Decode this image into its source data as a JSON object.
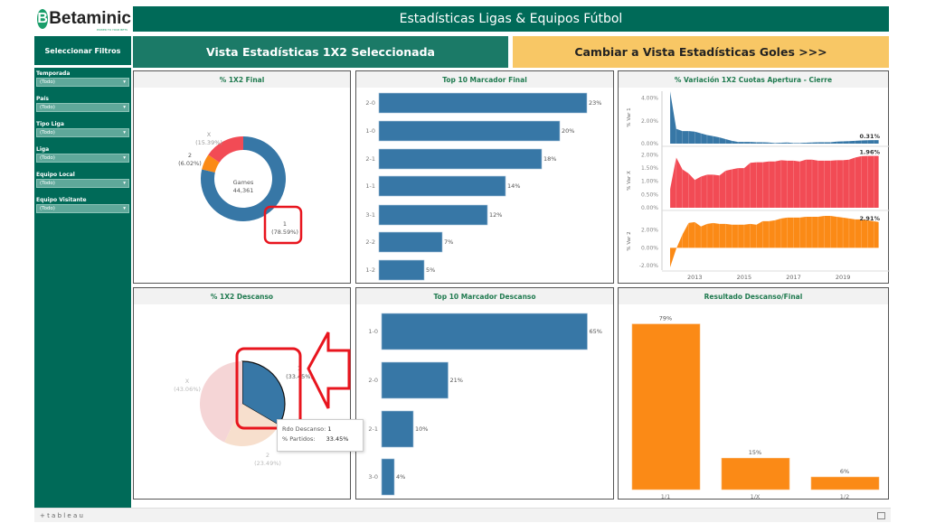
{
  "logo": {
    "text": "Betaminic",
    "tagline": "POWER TO YOUR BETS"
  },
  "header": {
    "title": "Estadísticas Ligas & Equipos Fútbol"
  },
  "sidebar": {
    "title": "Seleccionar Filtros",
    "filters": [
      {
        "label": "Temporada",
        "value": "(Todo)"
      },
      {
        "label": "País",
        "value": "(Todo)"
      },
      {
        "label": "Tipo Liga",
        "value": "(Todo)"
      },
      {
        "label": "Liga",
        "value": "(Todo)"
      },
      {
        "label": "Equipo Local",
        "value": "(Todo)"
      },
      {
        "label": "Equipo Visitante",
        "value": "(Todo)"
      }
    ]
  },
  "view_buttons": {
    "current": "Vista Estadísticas 1X2 Seleccionada",
    "switch": "Cambiar a Vista Estadísticas Goles >>>"
  },
  "colors": {
    "dark_green": "#006a58",
    "blue": "#3777a6",
    "red": "#f24b55",
    "orange": "#fb8a16",
    "yellow": "#f8c765",
    "annotation": "#e8151e"
  },
  "tooltip": {
    "line1_label": "Rdo Descanso:",
    "line1_value": "1",
    "line2_label": "% Partidos:",
    "line2_value": "33.45%"
  },
  "footer": {
    "brand": "+ t a b l e a u"
  },
  "chart_data": [
    {
      "type": "pie",
      "title": "% 1X2 Final",
      "center_label": "Games",
      "center_value": "44,361",
      "slices": [
        {
          "label": "1",
          "value": 78.59,
          "text": "(78.59%)",
          "color": "#3777a6"
        },
        {
          "label": "2",
          "value": 6.02,
          "text": "(6.02%)",
          "color": "#fb8a16"
        },
        {
          "label": "X",
          "value": 15.39,
          "text": "(15.39%)",
          "color": "#f24b55"
        }
      ]
    },
    {
      "type": "bar",
      "title": "Top 10 Marcador Final",
      "categories": [
        "2-0",
        "1-0",
        "2-1",
        "1-1",
        "3-1",
        "2-2",
        "1-2"
      ],
      "values": [
        23,
        20,
        18,
        14,
        12,
        7,
        5
      ],
      "labels": [
        "23%",
        "20%",
        "18%",
        "14%",
        "12%",
        "7%",
        "5%"
      ]
    },
    {
      "type": "area",
      "title": "% Variación 1X2 Cuotas Apertura - Cierre",
      "x_ticks": [
        "2013",
        "2015",
        "2017",
        "2019"
      ],
      "x": [
        2012,
        2012.25,
        2012.5,
        2012.75,
        2013,
        2013.25,
        2013.5,
        2013.75,
        2014,
        2014.25,
        2014.5,
        2014.75,
        2015,
        2015.25,
        2015.5,
        2015.75,
        2016,
        2016.25,
        2016.5,
        2016.75,
        2017,
        2017.25,
        2017.5,
        2017.75,
        2018,
        2018.25,
        2018.5,
        2018.75,
        2019,
        2019.25,
        2019.5,
        2019.75,
        2020,
        2020.25,
        2020.45
      ],
      "series": [
        {
          "name": "% Var 1",
          "ylim": [
            0,
            4.6
          ],
          "ticks": [
            "0.00%",
            "2.00%",
            "4.00%"
          ],
          "tick_values": [
            0,
            2,
            4
          ],
          "end_label": "0.31%",
          "color": "#3777a6",
          "values": [
            4.6,
            1.3,
            1.1,
            1.1,
            1.05,
            0.9,
            0.75,
            0.65,
            0.55,
            0.4,
            0.25,
            0.15,
            0.15,
            0.15,
            0.12,
            0.12,
            0.1,
            0.05,
            0.08,
            0.1,
            0.05,
            0.05,
            0.08,
            0.1,
            0.12,
            0.12,
            0.12,
            0.18,
            0.2,
            0.22,
            0.25,
            0.28,
            0.3,
            0.31,
            0.31
          ]
        },
        {
          "name": "% Var X",
          "ylim": [
            0,
            2.05
          ],
          "ticks": [
            "0.00%",
            "0.50%",
            "1.00%",
            "1.50%",
            "2.00%"
          ],
          "tick_values": [
            0,
            0.5,
            1,
            1.5,
            2
          ],
          "end_label": "1.96%",
          "color": "#f24b55",
          "values": [
            0.7,
            1.9,
            1.45,
            1.3,
            1.05,
            1.18,
            1.25,
            1.25,
            1.22,
            1.4,
            1.45,
            1.5,
            1.5,
            1.7,
            1.72,
            1.72,
            1.75,
            1.75,
            1.8,
            1.78,
            1.78,
            1.75,
            1.82,
            1.82,
            1.78,
            1.78,
            1.78,
            1.8,
            1.8,
            1.82,
            1.9,
            1.95,
            1.96,
            1.96,
            1.96
          ]
        },
        {
          "name": "% Var 2",
          "ylim": [
            -2.3,
            3.8
          ],
          "ticks": [
            "-2.00%",
            "0.00%",
            "2.00%"
          ],
          "tick_values": [
            -2,
            0,
            2
          ],
          "end_label": "2.91%",
          "color": "#fb8a16",
          "values": [
            -2.2,
            -0.1,
            1.5,
            2.8,
            2.9,
            2.4,
            2.7,
            2.8,
            2.7,
            2.7,
            2.6,
            2.6,
            2.6,
            2.7,
            2.6,
            3.0,
            3.0,
            3.1,
            3.3,
            3.4,
            3.4,
            3.4,
            3.5,
            3.5,
            3.5,
            3.6,
            3.6,
            3.5,
            3.4,
            3.3,
            3.2,
            3.2,
            3.1,
            3.0,
            2.91
          ]
        }
      ]
    },
    {
      "type": "pie",
      "title": "% 1X2 Descanso",
      "selected": "1",
      "slices": [
        {
          "label": "1",
          "value": 33.45,
          "text": "(33.45%)",
          "color": "#3777a6"
        },
        {
          "label": "2",
          "value": 23.49,
          "text": "(23.49%)",
          "color": "#f7dfcd"
        },
        {
          "label": "X",
          "value": 43.06,
          "text": "(43.06%)",
          "color": "#f5d5d6"
        }
      ]
    },
    {
      "type": "bar",
      "title": "Top 10 Marcador Descanso",
      "categories": [
        "1-0",
        "2-0",
        "2-1",
        "3-0"
      ],
      "values": [
        65,
        21,
        10,
        4
      ],
      "labels": [
        "65%",
        "21%",
        "10%",
        "4%"
      ]
    },
    {
      "type": "bar",
      "title": "Resultado Descanso/Final",
      "categories": [
        "1/1",
        "1/X",
        "1/2"
      ],
      "values": [
        79,
        15,
        6
      ],
      "labels": [
        "79%",
        "15%",
        "6%"
      ]
    }
  ]
}
